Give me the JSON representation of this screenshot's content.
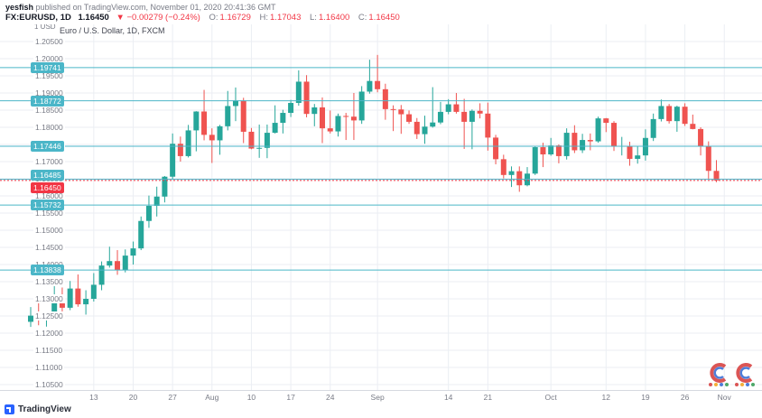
{
  "header": {
    "author": "yesfish",
    "published": " published on TradingView.com, November 01, 2020 20:41:36 GMT",
    "symbol": "FX:EURUSD, 1D",
    "price": "1.16450",
    "change": "▼ −0.00279 (−0.24%)",
    "o_label": "O:",
    "o_value": "1.16729",
    "h_label": "H:",
    "h_value": "1.17043",
    "l_label": "L:",
    "l_value": "1.16400",
    "c_label": "C:",
    "c_value": "1.16450"
  },
  "legend": "Euro / U.S. Dollar, 1D, FXCM",
  "scale_unit": "1 USD",
  "footer": {
    "brand": "TradingView"
  },
  "icons": {
    "brand": "tradingview-logo",
    "watermark": "c-badge-logo",
    "change_arrow": "▼"
  },
  "colors": {
    "up": "#26a69a",
    "down": "#ef5350",
    "level": "#4bb6c8",
    "last_price": "#f23645",
    "grid": "#ebeef3",
    "axis_text": "#787b86",
    "brand_blue": "#2962ff"
  },
  "chart_data": {
    "type": "candlestick",
    "title": "Euro / U.S. Dollar, 1D, FXCM",
    "symbol": "FX:EURUSD",
    "timeframe": "1D",
    "ylim": [
      1.105,
      1.2065
    ],
    "grid": true,
    "up_color": "#26a69a",
    "down_color": "#ef5350",
    "level_color": "#4bb6c8",
    "y_axis": {
      "max": 1.205,
      "step": 0.005,
      "labels": [
        "1.20500",
        "1.20000",
        "1.19500",
        "1.19000",
        "1.18500",
        "1.18000",
        "1.17500",
        "1.17000",
        "1.16500",
        "1.16000",
        "1.15500",
        "1.15000",
        "1.14500",
        "1.14000",
        "1.13500",
        "1.13000",
        "1.12500",
        "1.12000",
        "1.11500",
        "1.11000",
        "1.10500"
      ]
    },
    "x_labels": [
      {
        "text": "13",
        "idx": 8
      },
      {
        "text": "20",
        "idx": 13
      },
      {
        "text": "27",
        "idx": 18
      },
      {
        "text": "Aug",
        "idx": 23
      },
      {
        "text": "10",
        "idx": 28
      },
      {
        "text": "17",
        "idx": 33
      },
      {
        "text": "24",
        "idx": 38
      },
      {
        "text": "Sep",
        "idx": 44
      },
      {
        "text": "14",
        "idx": 53
      },
      {
        "text": "21",
        "idx": 58
      },
      {
        "text": "Oct",
        "idx": 66
      },
      {
        "text": "12",
        "idx": 73
      },
      {
        "text": "19",
        "idx": 78
      },
      {
        "text": "26",
        "idx": 83
      },
      {
        "text": "Nov",
        "idx": 88
      }
    ],
    "levels": [
      {
        "label": "1.19741",
        "price": 1.19741
      },
      {
        "label": "1.18772",
        "price": 1.18772
      },
      {
        "label": "1.17446",
        "price": 1.17446
      },
      {
        "label": "1.16485",
        "price": 1.16485
      },
      {
        "label": "1.15732",
        "price": 1.15732
      },
      {
        "label": "1.13838",
        "price": 1.13838
      }
    ],
    "last_price": {
      "label": "1.16450",
      "price": 1.1645
    },
    "candles": [
      [
        1.1233,
        1.1276,
        1.1218,
        1.1251
      ],
      [
        1.1251,
        1.1302,
        1.1223,
        1.1239
      ],
      [
        1.1239,
        1.1254,
        1.1219,
        1.1248
      ],
      [
        1.1248,
        1.1345,
        1.124,
        1.1308
      ],
      [
        1.1308,
        1.1333,
        1.1259,
        1.1274
      ],
      [
        1.1274,
        1.1352,
        1.1267,
        1.133
      ],
      [
        1.133,
        1.1371,
        1.1277,
        1.1284
      ],
      [
        1.1284,
        1.1325,
        1.1254,
        1.13
      ],
      [
        1.13,
        1.1375,
        1.1292,
        1.1341
      ],
      [
        1.1341,
        1.1409,
        1.1325,
        1.1397
      ],
      [
        1.1397,
        1.1452,
        1.1391,
        1.141
      ],
      [
        1.141,
        1.1442,
        1.137,
        1.1384
      ],
      [
        1.1384,
        1.1444,
        1.1377,
        1.1426
      ],
      [
        1.1426,
        1.1467,
        1.14,
        1.1447
      ],
      [
        1.1447,
        1.154,
        1.1442,
        1.1527
      ],
      [
        1.1527,
        1.1601,
        1.1507,
        1.1571
      ],
      [
        1.1571,
        1.1627,
        1.154,
        1.1598
      ],
      [
        1.1598,
        1.1658,
        1.1581,
        1.1656
      ],
      [
        1.1656,
        1.1782,
        1.1649,
        1.1752
      ],
      [
        1.1752,
        1.1773,
        1.17,
        1.1716
      ],
      [
        1.1716,
        1.1807,
        1.1712,
        1.1791
      ],
      [
        1.1791,
        1.1847,
        1.173,
        1.1846
      ],
      [
        1.1846,
        1.1909,
        1.1762,
        1.1778
      ],
      [
        1.1778,
        1.1797,
        1.1696,
        1.1762
      ],
      [
        1.1762,
        1.1807,
        1.172,
        1.1803
      ],
      [
        1.1803,
        1.1906,
        1.1791,
        1.1862
      ],
      [
        1.1862,
        1.1916,
        1.1818,
        1.1878
      ],
      [
        1.1878,
        1.1886,
        1.1754,
        1.1787
      ],
      [
        1.1787,
        1.1798,
        1.1736,
        1.1738
      ],
      [
        1.1738,
        1.1808,
        1.1711,
        1.174
      ],
      [
        1.174,
        1.1808,
        1.171,
        1.1784
      ],
      [
        1.1784,
        1.1864,
        1.1782,
        1.1813
      ],
      [
        1.1813,
        1.1851,
        1.1782,
        1.1842
      ],
      [
        1.1842,
        1.188,
        1.183,
        1.1871
      ],
      [
        1.1871,
        1.1966,
        1.1863,
        1.1933
      ],
      [
        1.1933,
        1.1952,
        1.1829,
        1.1839
      ],
      [
        1.1839,
        1.1868,
        1.1803,
        1.1858
      ],
      [
        1.1858,
        1.1887,
        1.1754,
        1.1797
      ],
      [
        1.1797,
        1.1849,
        1.1782,
        1.1788
      ],
      [
        1.1788,
        1.184,
        1.1773,
        1.1833
      ],
      [
        1.1833,
        1.1842,
        1.1763,
        1.1831
      ],
      [
        1.1831,
        1.19,
        1.1763,
        1.182
      ],
      [
        1.182,
        1.192,
        1.181,
        1.1904
      ],
      [
        1.1904,
        1.1997,
        1.1898,
        1.1935
      ],
      [
        1.1935,
        1.2011,
        1.1902,
        1.1911
      ],
      [
        1.1911,
        1.1927,
        1.1822,
        1.1853
      ],
      [
        1.1853,
        1.1864,
        1.1789,
        1.1852
      ],
      [
        1.1852,
        1.1865,
        1.1781,
        1.1838
      ],
      [
        1.1838,
        1.1849,
        1.181,
        1.1816
      ],
      [
        1.1816,
        1.1827,
        1.1766,
        1.178
      ],
      [
        1.178,
        1.1834,
        1.1752,
        1.1802
      ],
      [
        1.1802,
        1.1917,
        1.1799,
        1.1814
      ],
      [
        1.1814,
        1.1874,
        1.1809,
        1.1845
      ],
      [
        1.1845,
        1.1882,
        1.1838,
        1.1867
      ],
      [
        1.1867,
        1.19,
        1.184,
        1.1845
      ],
      [
        1.1845,
        1.1883,
        1.1737,
        1.1816
      ],
      [
        1.1816,
        1.1852,
        1.1736,
        1.1848
      ],
      [
        1.1848,
        1.187,
        1.1826,
        1.184
      ],
      [
        1.184,
        1.1872,
        1.1732,
        1.177
      ],
      [
        1.177,
        1.1778,
        1.1692,
        1.1707
      ],
      [
        1.1707,
        1.172,
        1.1651,
        1.1661
      ],
      [
        1.1661,
        1.1686,
        1.1626,
        1.1672
      ],
      [
        1.1672,
        1.1686,
        1.1612,
        1.1631
      ],
      [
        1.1631,
        1.1684,
        1.1628,
        1.1665
      ],
      [
        1.1665,
        1.1746,
        1.1661,
        1.1742
      ],
      [
        1.1742,
        1.1755,
        1.1684,
        1.1721
      ],
      [
        1.1721,
        1.1769,
        1.1717,
        1.1747
      ],
      [
        1.1747,
        1.175,
        1.1695,
        1.1716
      ],
      [
        1.1716,
        1.1797,
        1.1706,
        1.1784
      ],
      [
        1.1784,
        1.1806,
        1.1725,
        1.1733
      ],
      [
        1.1733,
        1.1781,
        1.1725,
        1.1763
      ],
      [
        1.1763,
        1.1782,
        1.1733,
        1.1759
      ],
      [
        1.1759,
        1.1831,
        1.1755,
        1.1826
      ],
      [
        1.1826,
        1.1827,
        1.1786,
        1.1813
      ],
      [
        1.1813,
        1.1818,
        1.1731,
        1.1745
      ],
      [
        1.1745,
        1.1772,
        1.1718,
        1.1746
      ],
      [
        1.1746,
        1.1758,
        1.1688,
        1.1708
      ],
      [
        1.1708,
        1.1746,
        1.1694,
        1.1718
      ],
      [
        1.1718,
        1.1794,
        1.1703,
        1.1769
      ],
      [
        1.1769,
        1.184,
        1.176,
        1.1824
      ],
      [
        1.1824,
        1.1881,
        1.1817,
        1.1862
      ],
      [
        1.1862,
        1.1868,
        1.1811,
        1.1818
      ],
      [
        1.1818,
        1.1863,
        1.1787,
        1.186
      ],
      [
        1.186,
        1.187,
        1.1804,
        1.181
      ],
      [
        1.181,
        1.1837,
        1.1794,
        1.1795
      ],
      [
        1.1795,
        1.18,
        1.1718,
        1.1746
      ],
      [
        1.1746,
        1.1759,
        1.165,
        1.1673
      ],
      [
        1.16729,
        1.17043,
        1.164,
        1.1645
      ]
    ]
  }
}
